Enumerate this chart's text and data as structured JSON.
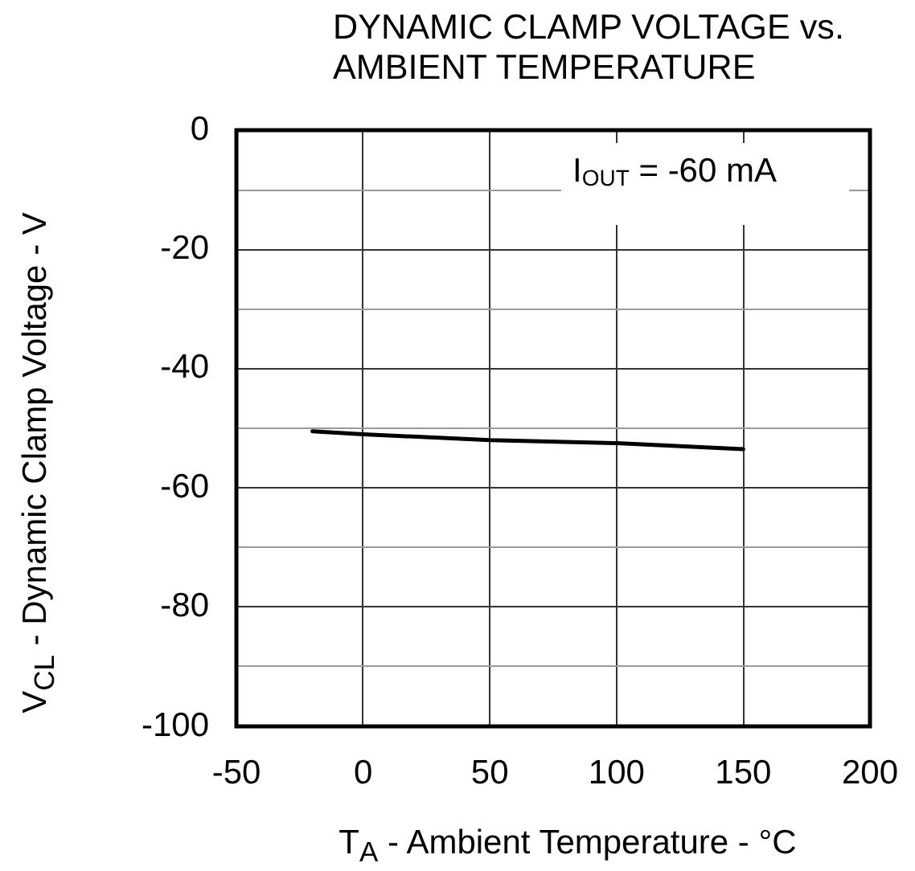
{
  "chart_data": {
    "type": "line",
    "title": "DYNAMIC CLAMP VOLTAGE vs. AMBIENT TEMPERATURE",
    "xlabel": "T$_{A}$ - Ambient Temperature - °C",
    "ylabel": "V$_{CL}$ - Dynamic Clamp Voltage - V",
    "annotations": [
      "I$_{OUT}$ = -60 mA"
    ],
    "x": [
      -20,
      0,
      50,
      100,
      150
    ],
    "series": [
      {
        "color": "#000000",
        "values": [
          -50.5,
          -51,
          -52,
          -52.5,
          -53.5
        ]
      }
    ],
    "xlim": [
      -50,
      200
    ],
    "xticks": [
      -50,
      0,
      50,
      100,
      150,
      200
    ],
    "ylim": [
      -100,
      0
    ],
    "yticks": [
      -100,
      {
        "value": -90,
        "label": null
      },
      -80,
      {
        "value": -70,
        "label": null
      },
      -60,
      {
        "value": -50,
        "label": null
      },
      -40,
      {
        "value": -30,
        "label": null
      },
      -20,
      {
        "value": -10,
        "label": null
      },
      0
    ],
    "grid": true,
    "legend": false,
    "marker": "none",
    "line_style": "solid"
  }
}
